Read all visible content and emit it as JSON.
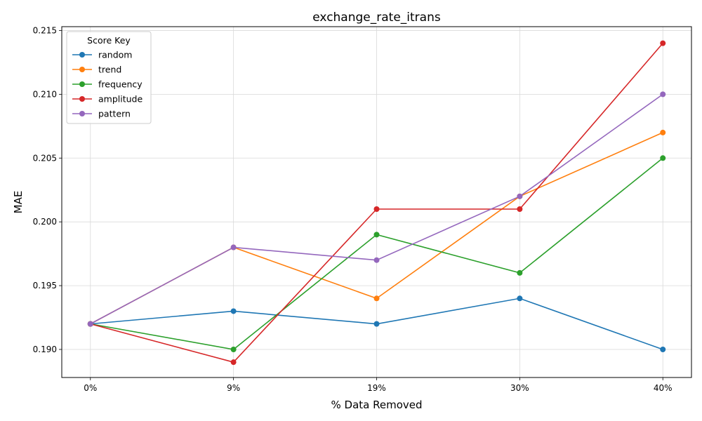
{
  "chart_data": {
    "type": "line",
    "title": "exchange_rate_itrans",
    "xlabel": "% Data Removed",
    "ylabel": "MAE",
    "categories": [
      "0%",
      "9%",
      "19%",
      "30%",
      "40%"
    ],
    "ylim": [
      0.1878,
      0.2153
    ],
    "yticks": [
      0.19,
      0.195,
      0.2,
      0.205,
      0.21,
      0.215
    ],
    "ytick_labels": [
      "0.190",
      "0.195",
      "0.200",
      "0.205",
      "0.210",
      "0.215"
    ],
    "grid": true,
    "legend": {
      "title": "Score Key",
      "placement": "top-left"
    },
    "series": [
      {
        "name": "random",
        "color": "#1f77b4",
        "values": [
          0.192,
          0.193,
          0.192,
          0.194,
          0.19
        ]
      },
      {
        "name": "trend",
        "color": "#ff7f0e",
        "values": [
          0.192,
          0.198,
          0.194,
          0.202,
          0.207
        ]
      },
      {
        "name": "frequency",
        "color": "#2ca02c",
        "values": [
          0.192,
          0.19,
          0.199,
          0.196,
          0.205
        ]
      },
      {
        "name": "amplitude",
        "color": "#d62728",
        "values": [
          0.192,
          0.189,
          0.201,
          0.201,
          0.214
        ]
      },
      {
        "name": "pattern",
        "color": "#9467bd",
        "values": [
          0.192,
          0.198,
          0.197,
          0.202,
          0.21
        ]
      }
    ]
  }
}
